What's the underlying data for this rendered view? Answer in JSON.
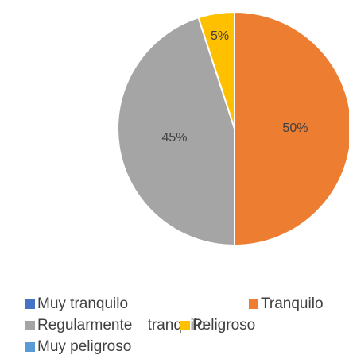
{
  "chart_data": {
    "type": "pie",
    "categories": [
      "Muy tranquilo",
      "Tranquilo",
      "Regularmente tranquilo",
      "Peligroso",
      "Muy peligroso"
    ],
    "values": [
      0,
      50,
      45,
      5,
      0
    ],
    "value_labels": [
      null,
      "50%",
      "45%",
      "5%",
      null
    ],
    "colors": [
      "#4472c4",
      "#ed7d31",
      "#a5a5a5",
      "#ffc000",
      "#5b9bd5"
    ],
    "legend": "bottom"
  }
}
